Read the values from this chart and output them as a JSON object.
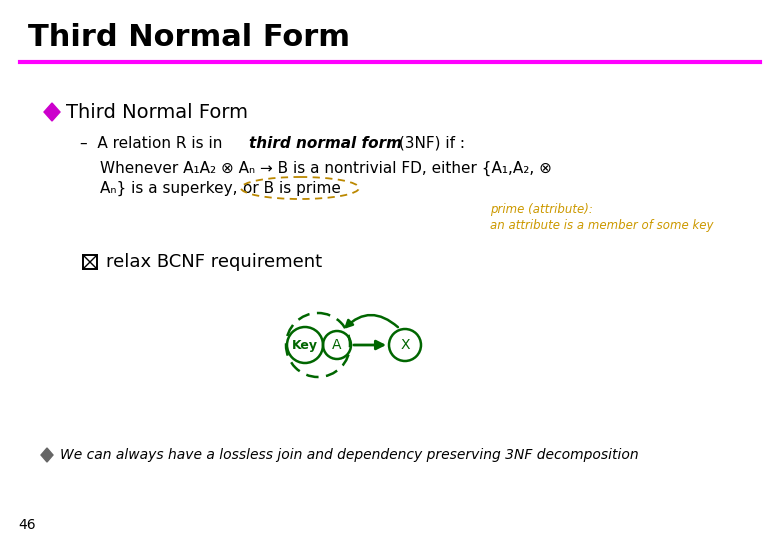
{
  "title": "Third Normal Form",
  "title_color": "#000000",
  "title_fontsize": 22,
  "line_color": "#FF00FF",
  "bullet1_diamond_color": "#CC00CC",
  "bullet1_text": "Third Normal Form",
  "bullet1_fontsize": 14,
  "prime_note1": "prime (attribute):",
  "prime_note2": "an attribute is a member of some key",
  "prime_note_color": "#CC9900",
  "bottom_bullet_text": "We can always have a lossless join and dependency preserving 3NF decomposition",
  "page_number": "46",
  "bg_color": "#FFFFFF",
  "text_color": "#000000",
  "green_color": "#006600",
  "bullet_v_color": "#666666"
}
